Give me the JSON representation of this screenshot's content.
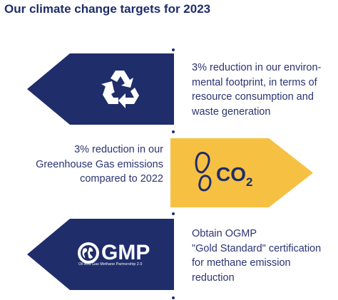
{
  "title": "Our climate change targets for 2023",
  "colors": {
    "navy": "#1f2d6b",
    "yellow": "#f6c142",
    "text": "#2b3473"
  },
  "targets": [
    {
      "icon": "recycle-icon",
      "lines": [
        "3% reduction in our environ-",
        "mental footprint, in terms of",
        "resource consumption and",
        "waste generation"
      ]
    },
    {
      "icon": "footprint-icon",
      "badge_main": "CO",
      "badge_sub": "2",
      "lines": [
        "3% reduction in our",
        "Greenhouse Gas emissions",
        "compared to 2022"
      ]
    },
    {
      "icon": "globe-icon",
      "logo_text": "GMP",
      "logo_tagline": "Oil And Gas Methane Partnership 2.0",
      "lines": [
        "Obtain OGMP",
        "\"Gold Standard\" certification",
        "for methane emission",
        "reduction"
      ]
    }
  ]
}
